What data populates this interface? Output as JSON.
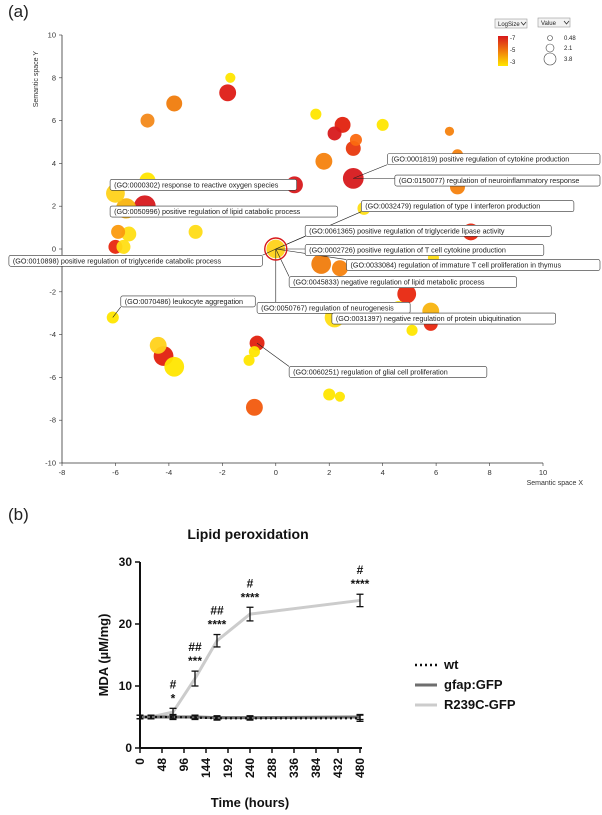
{
  "panel_a": {
    "panel_label": "(a)",
    "controls": {
      "logsize_select": "LogSize",
      "value_select": "Value",
      "color_legend_ticks": [
        "-7",
        "-5",
        "-3"
      ],
      "size_legend_values": [
        "0.48",
        "2.1",
        "3.8"
      ]
    },
    "colors": {
      "high": "#d7191c",
      "mid": "#f07c0c",
      "low": "#ffe600"
    }
  },
  "panel_b": {
    "panel_label": "(b)"
  },
  "chart_data": [
    {
      "type": "scatter",
      "title": "",
      "xlabel": "Semantic space X",
      "ylabel": "Semantic space Y",
      "xlim": [
        -8,
        10
      ],
      "ylim": [
        -10,
        10
      ],
      "x_ticks": [
        "-8",
        "-6",
        "-4",
        "-2",
        "0",
        "2",
        "4",
        "6",
        "8",
        "10"
      ],
      "y_ticks": [
        "10",
        "8",
        "6",
        "4",
        "2",
        "0",
        "-2",
        "-4",
        "-6",
        "-8",
        "-10"
      ],
      "grid": false,
      "points": [
        {
          "x": -6.0,
          "y": 2.6,
          "size": 3.0,
          "color": "#ffd21a"
        },
        {
          "x": -5.6,
          "y": 1.9,
          "size": 3.3,
          "color": "#f8b410"
        },
        {
          "x": -4.9,
          "y": 2.0,
          "size": 3.6,
          "color": "#d7191c"
        },
        {
          "x": -4.8,
          "y": 3.2,
          "size": 2.4,
          "color": "#ffe600"
        },
        {
          "x": -6.0,
          "y": 0.1,
          "size": 2.0,
          "color": "#e8270f"
        },
        {
          "x": -5.7,
          "y": 0.1,
          "size": 2.0,
          "color": "#ffde14"
        },
        {
          "x": -5.5,
          "y": 0.7,
          "size": 2.2,
          "color": "#ffde14"
        },
        {
          "x": -5.9,
          "y": 0.8,
          "size": 2.0,
          "color": "#fb9a0e"
        },
        {
          "x": -4.8,
          "y": 6.0,
          "size": 2.0,
          "color": "#f3891a"
        },
        {
          "x": -3.8,
          "y": 6.8,
          "size": 2.4,
          "color": "#f07c0c"
        },
        {
          "x": -1.7,
          "y": 8.0,
          "size": 1.2,
          "color": "#ffe600"
        },
        {
          "x": -1.8,
          "y": 7.3,
          "size": 2.6,
          "color": "#de1c16"
        },
        {
          "x": -3.0,
          "y": 0.8,
          "size": 2.0,
          "color": "#ffdc16"
        },
        {
          "x": 0.0,
          "y": 0.0,
          "size": 3.0,
          "color": "#ffd21a"
        },
        {
          "x": 0.7,
          "y": 3.0,
          "size": 2.6,
          "color": "#d7191c"
        },
        {
          "x": 1.5,
          "y": 6.3,
          "size": 1.4,
          "color": "#ffe600"
        },
        {
          "x": 1.8,
          "y": 4.1,
          "size": 2.6,
          "color": "#f5820e"
        },
        {
          "x": 2.2,
          "y": 5.4,
          "size": 2.0,
          "color": "#d7191c"
        },
        {
          "x": 2.5,
          "y": 5.8,
          "size": 2.4,
          "color": "#e2220e"
        },
        {
          "x": 3.0,
          "y": 5.1,
          "size": 1.6,
          "color": "#fb6a10"
        },
        {
          "x": 2.9,
          "y": 4.7,
          "size": 2.2,
          "color": "#e8390e"
        },
        {
          "x": 4.0,
          "y": 5.8,
          "size": 1.6,
          "color": "#ffe600"
        },
        {
          "x": 2.9,
          "y": 3.3,
          "size": 3.4,
          "color": "#d7191c"
        },
        {
          "x": 3.3,
          "y": 1.9,
          "size": 1.8,
          "color": "#ffde14"
        },
        {
          "x": 6.5,
          "y": 5.5,
          "size": 1.0,
          "color": "#f5820e"
        },
        {
          "x": 6.8,
          "y": 4.4,
          "size": 1.4,
          "color": "#f5820e"
        },
        {
          "x": 6.8,
          "y": 2.9,
          "size": 2.2,
          "color": "#f5820e"
        },
        {
          "x": 7.3,
          "y": 0.8,
          "size": 2.6,
          "color": "#e8270f"
        },
        {
          "x": 1.7,
          "y": -0.7,
          "size": 3.2,
          "color": "#f07c0c"
        },
        {
          "x": 2.4,
          "y": -0.9,
          "size": 2.4,
          "color": "#f5820e"
        },
        {
          "x": 2.2,
          "y": -3.2,
          "size": 3.2,
          "color": "#ffde14"
        },
        {
          "x": 4.9,
          "y": -2.1,
          "size": 3.0,
          "color": "#e8270f"
        },
        {
          "x": 4.6,
          "y": -2.8,
          "size": 2.4,
          "color": "#ffe600"
        },
        {
          "x": 5.8,
          "y": -2.9,
          "size": 2.6,
          "color": "#f8b410"
        },
        {
          "x": 5.8,
          "y": -3.5,
          "size": 2.0,
          "color": "#e8270f"
        },
        {
          "x": 5.1,
          "y": -3.8,
          "size": 1.4,
          "color": "#ffe600"
        },
        {
          "x": 5.9,
          "y": -0.4,
          "size": 1.4,
          "color": "#ffde14"
        },
        {
          "x": -6.1,
          "y": -3.2,
          "size": 1.6,
          "color": "#ffe600"
        },
        {
          "x": -4.4,
          "y": -4.5,
          "size": 2.6,
          "color": "#ffd21a"
        },
        {
          "x": -4.2,
          "y": -5.0,
          "size": 3.2,
          "color": "#e2200e"
        },
        {
          "x": -3.8,
          "y": -5.5,
          "size": 3.2,
          "color": "#ffe600"
        },
        {
          "x": -0.7,
          "y": -4.4,
          "size": 2.2,
          "color": "#e2200e"
        },
        {
          "x": -0.8,
          "y": -4.8,
          "size": 1.4,
          "color": "#ffe600"
        },
        {
          "x": -1.0,
          "y": -5.2,
          "size": 1.4,
          "color": "#ffe600"
        },
        {
          "x": -0.8,
          "y": -7.4,
          "size": 2.6,
          "color": "#f25a0e"
        },
        {
          "x": 2.0,
          "y": -6.8,
          "size": 1.6,
          "color": "#ffe600"
        },
        {
          "x": 2.4,
          "y": -6.9,
          "size": 1.2,
          "color": "#ffe600"
        }
      ],
      "annotations": [
        {
          "text": "(GO:0001819) positive regulation of cytokine production",
          "x": 2.9,
          "y": 3.3,
          "anchor": "left",
          "lx": 4.5,
          "ly": 4.2
        },
        {
          "text": "(GO:0150077) regulation of neuroinflammatory response",
          "x": 2.9,
          "y": 3.3,
          "anchor": "left",
          "lx": 4.5,
          "ly": 3.2
        },
        {
          "text": "(GO:0000302) response to reactive oxygen species",
          "x": -4.8,
          "y": 3.2,
          "anchor": "left",
          "lx": -6.2,
          "ly": 3.0
        },
        {
          "text": "(GO:0050996) positive regulation of lipid catabolic process",
          "x": -4.9,
          "y": 2.0,
          "anchor": "left",
          "lx": -6.2,
          "ly": 1.75
        },
        {
          "text": "(GO:0032479) regulation of type I interferon production",
          "x": 0.0,
          "y": 0.0,
          "anchor": "left",
          "lx": 3.2,
          "ly": 2.0
        },
        {
          "text": "(GO:0061365) positive regulation of triglyceride lipase activity",
          "x": 0.0,
          "y": 0.0,
          "anchor": "left",
          "lx": 1.1,
          "ly": 0.85
        },
        {
          "text": "(GO:0010898) positive regulation of triglyceride catabolic process",
          "x": 0.0,
          "y": 0.0,
          "anchor": "right",
          "lx": -0.5,
          "ly": -0.55
        },
        {
          "text": "(GO:0002726) positive regulation of T cell cytokine production",
          "x": 0.0,
          "y": 0.0,
          "anchor": "left",
          "lx": 1.1,
          "ly": -0.05
        },
        {
          "text": "(GO:0033084) regulation of immature T cell proliferation in thymus",
          "x": 0.0,
          "y": 0.0,
          "anchor": "left",
          "lx": 2.9,
          "ly": -0.75
        },
        {
          "text": "(GO:0045833) negative regulation of lipid metabolic process",
          "x": 0.0,
          "y": 0.0,
          "anchor": "left",
          "lx": 0.5,
          "ly": -1.55
        },
        {
          "text": "(GO:0070486) leukocyte aggregation",
          "x": -6.1,
          "y": -3.2,
          "anchor": "left",
          "lx": -5.8,
          "ly": -2.45
        },
        {
          "text": "(GO:0050767) regulation of neurogenesis",
          "x": 0.0,
          "y": 0.0,
          "anchor": "left",
          "lx": -0.7,
          "ly": -2.75
        },
        {
          "text": "(GO:0031397) negative regulation of protein ubiquitination",
          "x": 4.6,
          "y": -2.8,
          "anchor": "left",
          "lx": 2.1,
          "ly": -3.25
        },
        {
          "text": "(GO:0060251) regulation of glial cell proliferation",
          "x": -0.7,
          "y": -4.4,
          "anchor": "left",
          "lx": 0.5,
          "ly": -5.75
        }
      ]
    },
    {
      "type": "line",
      "title": "Lipid peroxidation",
      "xlabel": "Time (hours)",
      "ylabel": "MDA (µM/mg)",
      "xlim": [
        0,
        480
      ],
      "ylim": [
        0,
        30
      ],
      "x_ticks": [
        "0",
        "48",
        "96",
        "144",
        "192",
        "240",
        "288",
        "336",
        "384",
        "432",
        "480"
      ],
      "y_ticks": [
        "0",
        "10",
        "20",
        "30"
      ],
      "legend_position": "right",
      "x": [
        0,
        24,
        72,
        120,
        168,
        240,
        480
      ],
      "series": [
        {
          "name": "wt",
          "style": "dotted",
          "color": "#111111",
          "values": [
            5.0,
            5.0,
            5.0,
            4.9,
            4.8,
            4.8,
            4.8
          ],
          "errors": [
            0.3,
            0.3,
            0.4,
            0.3,
            0.3,
            0.3,
            0.5
          ]
        },
        {
          "name": "gfap:GFP",
          "style": "solid",
          "color": "#6e6e6e",
          "values": [
            5.0,
            5.0,
            5.0,
            5.0,
            4.9,
            4.9,
            5.0
          ],
          "errors": [
            0.3,
            0.3,
            0.3,
            0.3,
            0.3,
            0.3,
            0.4
          ]
        },
        {
          "name": "R239C-GFP",
          "style": "solid",
          "color": "#cccccc",
          "values": [
            5.0,
            5.0,
            5.8,
            11.2,
            17.3,
            21.6,
            23.8
          ],
          "errors": [
            0.3,
            0.3,
            0.6,
            1.2,
            1.0,
            1.1,
            1.0
          ]
        }
      ],
      "annotations": [
        {
          "x": 72,
          "labels": [
            "#",
            "*"
          ]
        },
        {
          "x": 120,
          "labels": [
            "##",
            "***"
          ]
        },
        {
          "x": 168,
          "labels": [
            "##",
            "****"
          ]
        },
        {
          "x": 240,
          "labels": [
            "#",
            "****"
          ]
        },
        {
          "x": 480,
          "labels": [
            "#",
            "****"
          ]
        }
      ]
    }
  ]
}
